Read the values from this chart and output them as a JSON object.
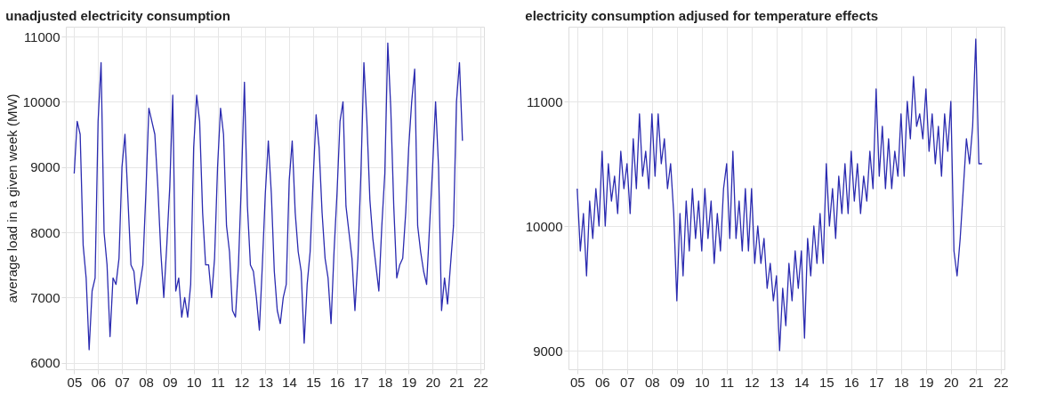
{
  "chart_data": [
    {
      "type": "line",
      "title": "unadjusted electricity consumption",
      "ylabel": "average load in a given week (MW)",
      "x": [
        2005,
        2005.125,
        2005.25,
        2005.375,
        2005.5,
        2005.625,
        2005.75,
        2005.875,
        2006,
        2006.125,
        2006.25,
        2006.375,
        2006.5,
        2006.625,
        2006.75,
        2006.875,
        2007,
        2007.125,
        2007.25,
        2007.375,
        2007.5,
        2007.625,
        2007.75,
        2007.875,
        2008,
        2008.125,
        2008.25,
        2008.375,
        2008.5,
        2008.625,
        2008.75,
        2008.875,
        2009,
        2009.125,
        2009.25,
        2009.375,
        2009.5,
        2009.625,
        2009.75,
        2009.875,
        2010,
        2010.125,
        2010.25,
        2010.375,
        2010.5,
        2010.625,
        2010.75,
        2010.875,
        2011,
        2011.125,
        2011.25,
        2011.375,
        2011.5,
        2011.625,
        2011.75,
        2011.875,
        2012,
        2012.125,
        2012.25,
        2012.375,
        2012.5,
        2012.625,
        2012.75,
        2012.875,
        2013,
        2013.125,
        2013.25,
        2013.375,
        2013.5,
        2013.625,
        2013.75,
        2013.875,
        2014,
        2014.125,
        2014.25,
        2014.375,
        2014.5,
        2014.625,
        2014.75,
        2014.875,
        2015,
        2015.125,
        2015.25,
        2015.375,
        2015.5,
        2015.625,
        2015.75,
        2015.875,
        2016,
        2016.125,
        2016.25,
        2016.375,
        2016.5,
        2016.625,
        2016.75,
        2016.875,
        2017,
        2017.125,
        2017.25,
        2017.375,
        2017.5,
        2017.625,
        2017.75,
        2017.875,
        2018,
        2018.125,
        2018.25,
        2018.375,
        2018.5,
        2018.625,
        2018.75,
        2018.875,
        2019,
        2019.125,
        2019.25,
        2019.375,
        2019.5,
        2019.625,
        2019.75,
        2019.875,
        2020,
        2020.125,
        2020.25,
        2020.375,
        2020.5,
        2020.625,
        2020.75,
        2020.875,
        2021,
        2021.125,
        2021.25
      ],
      "series": [
        {
          "color": "#2b2bb0",
          "values": [
            8900,
            9700,
            9500,
            7800,
            7300,
            6200,
            7100,
            7300,
            9700,
            10600,
            8000,
            7500,
            6400,
            7300,
            7200,
            7600,
            9000,
            9500,
            8500,
            7500,
            7400,
            6900,
            7200,
            7500,
            8600,
            9900,
            9700,
            9500,
            8700,
            7700,
            7000,
            7800,
            8700,
            10100,
            7100,
            7300,
            6700,
            7000,
            6700,
            7200,
            9300,
            10100,
            9700,
            8300,
            7500,
            7500,
            7000,
            7600,
            9000,
            9900,
            9500,
            8100,
            7700,
            6800,
            6700,
            7500,
            8800,
            10300,
            8400,
            7500,
            7400,
            7000,
            6500,
            7500,
            8600,
            9400,
            8600,
            7400,
            6800,
            6600,
            7000,
            7200,
            8800,
            9400,
            8300,
            7700,
            7400,
            6300,
            7200,
            7700,
            8800,
            9800,
            9300,
            8300,
            7600,
            7300,
            6600,
            7700,
            8600,
            9700,
            10000,
            8400,
            8000,
            7600,
            6800,
            7600,
            8900,
            10600,
            9700,
            8500,
            7900,
            7500,
            7100,
            8100,
            8900,
            10900,
            9900,
            8400,
            7300,
            7500,
            7600,
            8300,
            9300,
            10000,
            10500,
            8100,
            7700,
            7400,
            7200,
            8100,
            9000,
            10000,
            9000,
            6800,
            7300,
            6900,
            7500,
            8100,
            10000,
            10600,
            9400
          ]
        }
      ],
      "xlim": [
        2004.65,
        2022.15
      ],
      "ylim": [
        5900,
        11150
      ],
      "xticks": [
        {
          "value": 2005,
          "label": "05"
        },
        {
          "value": 2006,
          "label": "06"
        },
        {
          "value": 2007,
          "label": "07"
        },
        {
          "value": 2008,
          "label": "08"
        },
        {
          "value": 2009,
          "label": "09"
        },
        {
          "value": 2010,
          "label": "10"
        },
        {
          "value": 2011,
          "label": "11"
        },
        {
          "value": 2012,
          "label": "12"
        },
        {
          "value": 2013,
          "label": "13"
        },
        {
          "value": 2014,
          "label": "14"
        },
        {
          "value": 2015,
          "label": "15"
        },
        {
          "value": 2016,
          "label": "16"
        },
        {
          "value": 2017,
          "label": "17"
        },
        {
          "value": 2018,
          "label": "18"
        },
        {
          "value": 2019,
          "label": "19"
        },
        {
          "value": 2020,
          "label": "20"
        },
        {
          "value": 2021,
          "label": "21"
        },
        {
          "value": 2022,
          "label": "22"
        }
      ],
      "yticks": [
        6000,
        7000,
        8000,
        9000,
        10000,
        11000
      ],
      "grid": true,
      "marker": "none",
      "line_style": "solid"
    },
    {
      "type": "line",
      "title": "electricity consumption adjused for temperature effects",
      "x": [
        2005,
        2005.125,
        2005.25,
        2005.375,
        2005.5,
        2005.625,
        2005.75,
        2005.875,
        2006,
        2006.125,
        2006.25,
        2006.375,
        2006.5,
        2006.625,
        2006.75,
        2006.875,
        2007,
        2007.125,
        2007.25,
        2007.375,
        2007.5,
        2007.625,
        2007.75,
        2007.875,
        2008,
        2008.125,
        2008.25,
        2008.375,
        2008.5,
        2008.625,
        2008.75,
        2008.875,
        2009,
        2009.125,
        2009.25,
        2009.375,
        2009.5,
        2009.625,
        2009.75,
        2009.875,
        2010,
        2010.125,
        2010.25,
        2010.375,
        2010.5,
        2010.625,
        2010.75,
        2010.875,
        2011,
        2011.125,
        2011.25,
        2011.375,
        2011.5,
        2011.625,
        2011.75,
        2011.875,
        2012,
        2012.125,
        2012.25,
        2012.375,
        2012.5,
        2012.625,
        2012.75,
        2012.875,
        2013,
        2013.125,
        2013.25,
        2013.375,
        2013.5,
        2013.625,
        2013.75,
        2013.875,
        2014,
        2014.125,
        2014.25,
        2014.375,
        2014.5,
        2014.625,
        2014.75,
        2014.875,
        2015,
        2015.125,
        2015.25,
        2015.375,
        2015.5,
        2015.625,
        2015.75,
        2015.875,
        2016,
        2016.125,
        2016.25,
        2016.375,
        2016.5,
        2016.625,
        2016.75,
        2016.875,
        2017,
        2017.125,
        2017.25,
        2017.375,
        2017.5,
        2017.625,
        2017.75,
        2017.875,
        2018,
        2018.125,
        2018.25,
        2018.375,
        2018.5,
        2018.625,
        2018.75,
        2018.875,
        2019,
        2019.125,
        2019.25,
        2019.375,
        2019.5,
        2019.625,
        2019.75,
        2019.875,
        2020,
        2020.125,
        2020.25,
        2020.375,
        2020.5,
        2020.625,
        2020.75,
        2020.875,
        2021,
        2021.125,
        2021.25
      ],
      "series": [
        {
          "color": "#2b2bb0",
          "values": [
            10300,
            9800,
            10100,
            9600,
            10200,
            9900,
            10300,
            10000,
            10600,
            10000,
            10500,
            10200,
            10400,
            10100,
            10600,
            10300,
            10500,
            10100,
            10700,
            10300,
            10900,
            10400,
            10600,
            10300,
            10900,
            10400,
            10900,
            10500,
            10700,
            10300,
            10500,
            10100,
            9400,
            10100,
            9600,
            10200,
            9800,
            10300,
            9900,
            10200,
            9800,
            10300,
            9900,
            10200,
            9700,
            10100,
            9800,
            10300,
            10500,
            9900,
            10600,
            9900,
            10200,
            9800,
            10300,
            9800,
            10300,
            9700,
            10000,
            9700,
            9900,
            9500,
            9700,
            9400,
            9600,
            9000,
            9500,
            9200,
            9700,
            9400,
            9800,
            9500,
            9800,
            9100,
            9900,
            9600,
            10000,
            9700,
            10100,
            9700,
            10500,
            10000,
            10300,
            9900,
            10400,
            10100,
            10500,
            10100,
            10600,
            10200,
            10500,
            10100,
            10400,
            10200,
            10600,
            10300,
            11100,
            10400,
            10800,
            10300,
            10700,
            10300,
            10600,
            10400,
            10900,
            10400,
            11000,
            10700,
            11200,
            10800,
            10900,
            10700,
            11100,
            10600,
            10900,
            10500,
            10800,
            10400,
            10900,
            10600,
            11000,
            9800,
            9600,
            9900,
            10300,
            10700,
            10500,
            10800,
            11500,
            10500,
            10500
          ]
        }
      ],
      "xlim": [
        2004.65,
        2022.15
      ],
      "ylim": [
        8850,
        11600
      ],
      "xticks": [
        {
          "value": 2005,
          "label": "05"
        },
        {
          "value": 2006,
          "label": "06"
        },
        {
          "value": 2007,
          "label": "07"
        },
        {
          "value": 2008,
          "label": "08"
        },
        {
          "value": 2009,
          "label": "09"
        },
        {
          "value": 2010,
          "label": "10"
        },
        {
          "value": 2011,
          "label": "11"
        },
        {
          "value": 2012,
          "label": "12"
        },
        {
          "value": 2013,
          "label": "13"
        },
        {
          "value": 2014,
          "label": "14"
        },
        {
          "value": 2015,
          "label": "15"
        },
        {
          "value": 2016,
          "label": "16"
        },
        {
          "value": 2017,
          "label": "17"
        },
        {
          "value": 2018,
          "label": "18"
        },
        {
          "value": 2019,
          "label": "19"
        },
        {
          "value": 2020,
          "label": "20"
        },
        {
          "value": 2021,
          "label": "21"
        },
        {
          "value": 2022,
          "label": "22"
        }
      ],
      "yticks": [
        9000,
        10000,
        11000
      ],
      "grid": true,
      "marker": "none",
      "line_style": "solid"
    }
  ]
}
